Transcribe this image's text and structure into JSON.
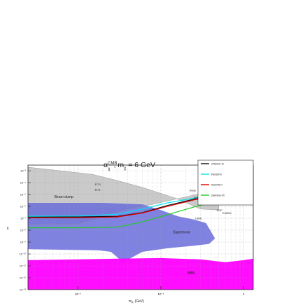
{
  "chart_data": {
    "type": "area",
    "title": "α_χ^CMB, m_χ = 6 GeV",
    "title_parts": {
      "alpha": "α",
      "sup": "CMB",
      "sub": "χ",
      "rest": ", m",
      "sub2": "χ",
      "eq": " = 6 GeV"
    },
    "xlabel": "m_A' (GeV)",
    "xlabel_parts": {
      "main": "m",
      "sub": "A'",
      "unit": " (GeV)"
    },
    "ylabel": "ε",
    "xscale": "log",
    "yscale": "log",
    "xlim": [
      0.0025,
      1.3
    ],
    "ylim": [
      1e-13,
      0.003
    ],
    "x_ticks": [
      {
        "v": 0.01,
        "label": "10⁻²"
      },
      {
        "v": 0.1,
        "label": "10⁻¹"
      },
      {
        "v": 1,
        "label": "1"
      }
    ],
    "y_ticks": [
      {
        "v": 0.001,
        "label": "10⁻³"
      },
      {
        "v": 0.0001,
        "label": "10⁻⁴"
      },
      {
        "v": 1e-05,
        "label": "10⁻⁵"
      },
      {
        "v": 1e-06,
        "label": "10⁻⁶"
      },
      {
        "v": 1e-07,
        "label": "10⁻⁷"
      },
      {
        "v": 1e-08,
        "label": "10⁻⁸"
      },
      {
        "v": 1e-09,
        "label": "10⁻⁹"
      },
      {
        "v": 1e-10,
        "label": "10⁻¹⁰"
      },
      {
        "v": 1e-11,
        "label": "10⁻¹¹"
      },
      {
        "v": 1e-12,
        "label": "10⁻¹²"
      },
      {
        "v": 1e-13,
        "label": "10⁻¹³"
      }
    ],
    "grid": true,
    "legend_position": "top-right",
    "series": [
      {
        "name": "CRESST-III",
        "color": "#111111",
        "x": [
          0.0025,
          0.01,
          0.03,
          0.06,
          0.12,
          0.25,
          0.5,
          1.0
        ],
        "y": [
          1.3e-07,
          1.3e-07,
          1.45e-07,
          3e-07,
          1.2e-06,
          4e-06,
          1e-05,
          2e-05
        ]
      },
      {
        "name": "PandaX-II",
        "color": "#00e5ee",
        "x": [
          0.0025,
          0.01,
          0.03,
          0.06,
          0.12,
          0.25,
          0.5,
          1.0
        ],
        "y": [
          1.5e-07,
          1.55e-07,
          2.2e-07,
          6e-07,
          2e-06,
          5e-06,
          1.2e-05,
          2.5e-05
        ]
      },
      {
        "name": "XENON1T",
        "color": "#e00000",
        "x": [
          0.0025,
          0.01,
          0.03,
          0.06,
          0.12,
          0.25,
          0.5,
          1.0
        ],
        "y": [
          1.1e-07,
          1.1e-07,
          1.3e-07,
          2.8e-07,
          1e-06,
          3.5e-06,
          9e-06,
          1.8e-05
        ]
      },
      {
        "name": "DarkSide-50",
        "color": "#22cc22",
        "x": [
          0.0025,
          0.01,
          0.03,
          0.06,
          0.12,
          0.25,
          0.5,
          1.0
        ],
        "y": [
          1.6e-08,
          1.6e-08,
          1.8e-08,
          5e-08,
          2e-07,
          9e-07,
          3e-06,
          8e-06
        ]
      }
    ],
    "regions": [
      {
        "name": "BBN",
        "color": "#ff00ff",
        "x": [
          0.0025,
          0.03,
          0.1,
          0.3,
          0.6,
          1.0,
          1.3,
          1.3,
          0.0025
        ],
        "y": [
          3e-11,
          4e-11,
          4.5e-11,
          3.5e-11,
          2e-11,
          3e-11,
          4e-11,
          1e-13,
          1e-13
        ]
      },
      {
        "name": "Supernova",
        "color": "#6a6cdc",
        "x": [
          0.0025,
          0.02,
          0.06,
          0.1,
          0.16,
          0.25,
          0.35,
          0.45,
          0.38,
          0.25,
          0.12,
          0.06,
          0.035,
          0.025,
          0.018,
          0.0025
        ],
        "y": [
          2e-06,
          2e-06,
          1.5e-06,
          5e-07,
          1.5e-07,
          8e-08,
          4e-08,
          2e-09,
          7e-10,
          5e-10,
          3e-10,
          1.5e-10,
          2e-11,
          1.5e-10,
          2e-10,
          2.5e-10
        ]
      },
      {
        "name": "Beam dump",
        "color": "#bdbdbd",
        "x": [
          0.0025,
          0.01,
          0.02,
          0.04,
          0.08,
          0.15,
          0.3,
          0.5,
          0.5,
          0.3,
          0.15,
          0.06,
          0.03,
          0.015,
          0.0025
        ],
        "y": [
          3e-08,
          3e-08,
          1.5e-07,
          6e-07,
          1.5e-06,
          4e-06,
          1.2e-05,
          2e-05,
          5e-07,
          6e-07,
          5e-06,
          4e-05,
          0.00015,
          0.0005,
          0.002
        ]
      }
    ],
    "annotations": [
      "Beam dump",
      "Supernova",
      "BBN",
      "E774",
      "E141",
      "KEK",
      "Orsay",
      "E137",
      "CHARM",
      "LSND",
      "U70"
    ]
  }
}
